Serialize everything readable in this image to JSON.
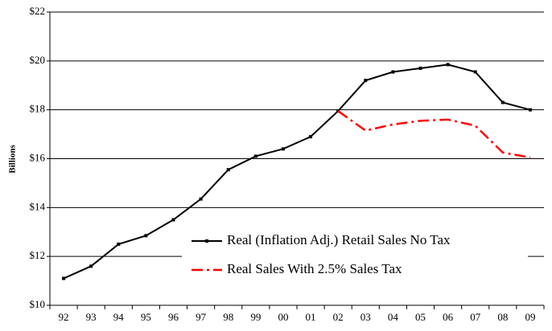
{
  "chart_data": {
    "type": "line",
    "y_axis_label": "Billions",
    "categories": [
      "92",
      "93",
      "94",
      "95",
      "96",
      "97",
      "98",
      "99",
      "00",
      "01",
      "02",
      "03",
      "04",
      "05",
      "06",
      "07",
      "08",
      "09"
    ],
    "series": [
      {
        "name": "Real (Inflation Adj.) Retail Sales No Tax",
        "color": "#000000",
        "dashed": false,
        "markers": true,
        "values": [
          11.1,
          11.6,
          12.5,
          12.85,
          13.5,
          14.35,
          15.55,
          16.1,
          16.4,
          16.9,
          17.95,
          19.2,
          19.55,
          19.7,
          19.85,
          19.55,
          18.3,
          18.0
        ]
      },
      {
        "name": "Real Sales With 2.5% Sales Tax",
        "color": "#ff0000",
        "dashed": true,
        "markers": false,
        "values": [
          null,
          null,
          null,
          null,
          null,
          null,
          null,
          null,
          null,
          null,
          17.95,
          17.15,
          17.4,
          17.55,
          17.6,
          17.35,
          16.25,
          16.05
        ]
      }
    ],
    "ylim": [
      10,
      22
    ],
    "yticks": [
      {
        "value": 10,
        "label": "$10"
      },
      {
        "value": 12,
        "label": "$12"
      },
      {
        "value": 14,
        "label": "$14"
      },
      {
        "value": 16,
        "label": "$16"
      },
      {
        "value": 18,
        "label": "$18"
      },
      {
        "value": 20,
        "label": "$20"
      },
      {
        "value": 22,
        "label": "$22"
      }
    ],
    "grid": true,
    "legend": "lower right"
  }
}
